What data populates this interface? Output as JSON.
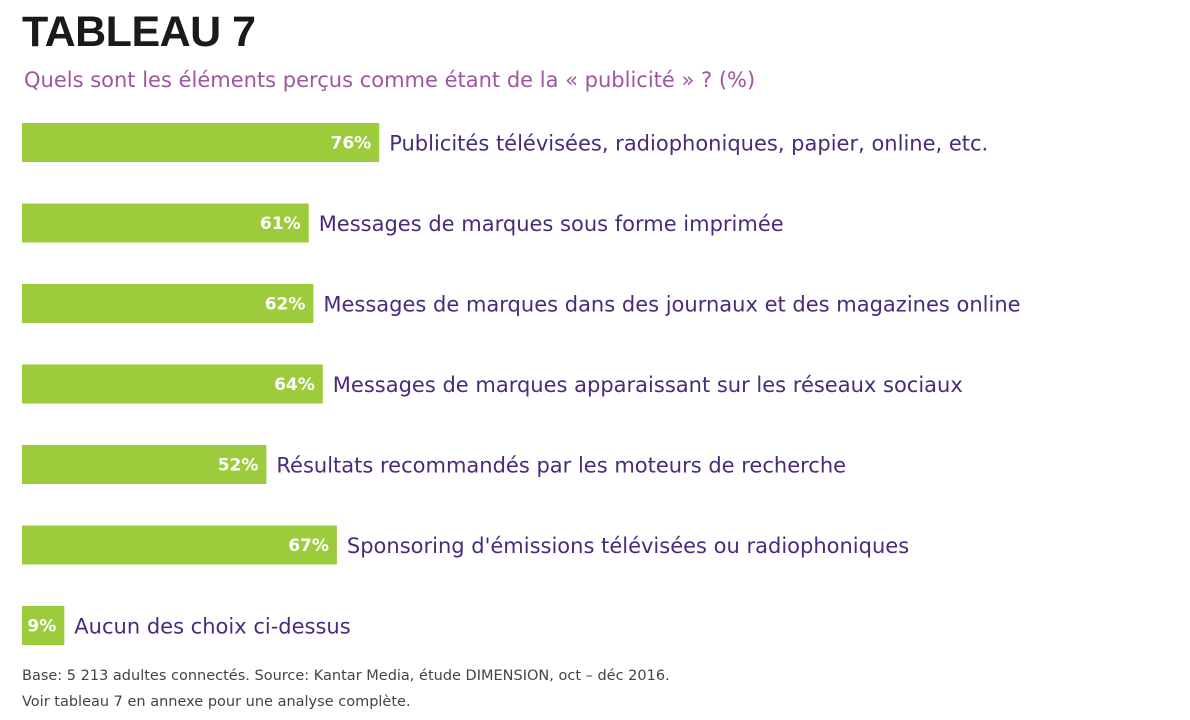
{
  "chart_data": {
    "type": "bar",
    "orientation": "horizontal",
    "title": "TABLEAU 7",
    "subtitle": "Quels sont les éléments perçus comme étant de la « publicité » ? (%)",
    "categories": [
      "Publicités télévisées, radiophoniques, papier, online, etc.",
      "Messages de marques sous forme imprimée",
      "Messages de marques dans des journaux et des magazines online",
      "Messages de marques apparaissant sur les réseaux sociaux",
      "Résultats recommandés par les moteurs de recherche",
      "Sponsoring d'émissions télévisées ou radiophoniques",
      "Aucun des choix ci-dessus"
    ],
    "values": [
      76,
      61,
      62,
      64,
      52,
      67,
      9
    ],
    "value_labels": [
      "76%",
      "61%",
      "62%",
      "64%",
      "52%",
      "67%",
      "9%"
    ],
    "xlim": [
      0,
      100
    ],
    "grid": false,
    "legend": "none"
  },
  "colors": {
    "bar": "#9ccb3b",
    "label": "#4a2a7a",
    "subtitle": "#a0569e",
    "title": "#1a1a1a"
  },
  "footnotes": {
    "line1": "Base: 5 213 adultes connectés. Source: Kantar Media, étude DIMENSION, oct – déc 2016.",
    "line2": "Voir tableau 7 en annexe pour une analyse complète."
  }
}
